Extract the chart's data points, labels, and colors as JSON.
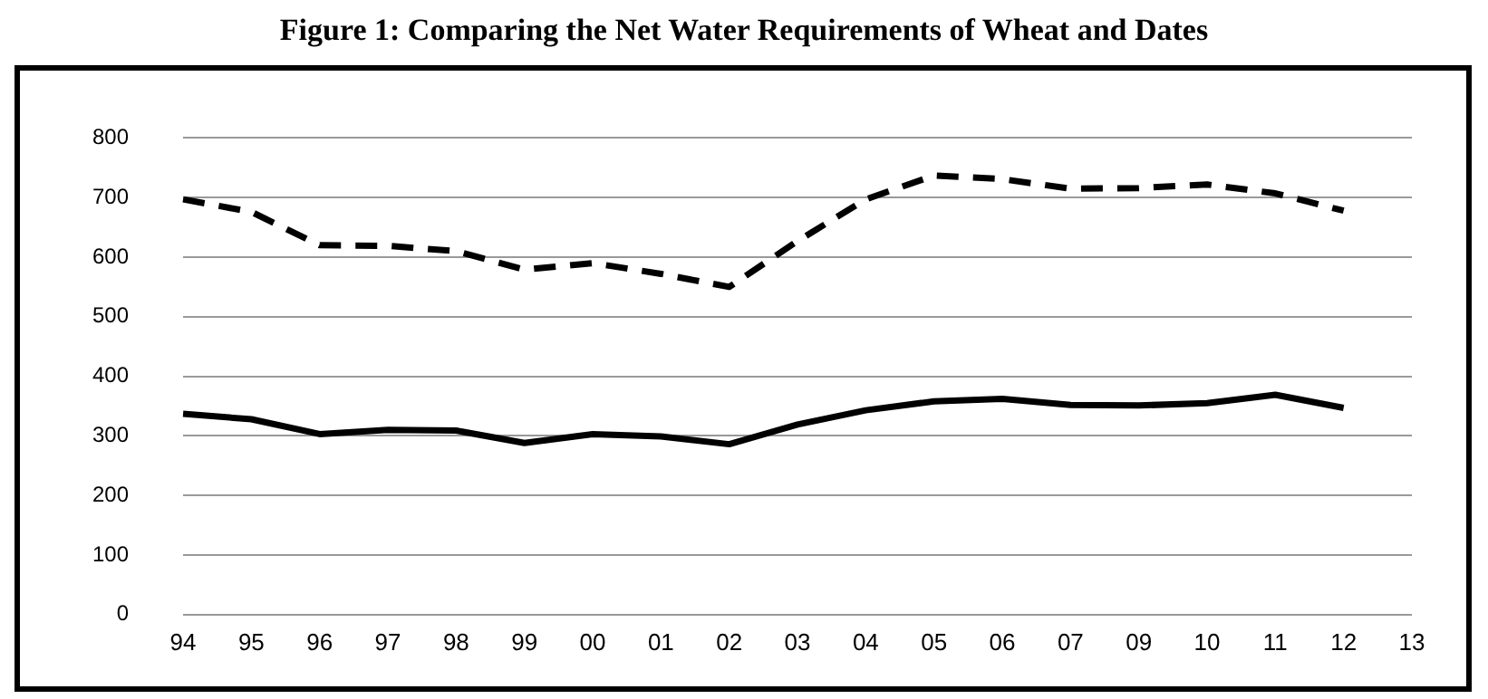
{
  "chart_data": {
    "type": "line",
    "title": "Figure 1: Comparing the Net Water Requirements of Wheat and Dates",
    "categories": [
      "94",
      "95",
      "96",
      "97",
      "98",
      "99",
      "00",
      "01",
      "02",
      "03",
      "04",
      "05",
      "06",
      "07",
      "09",
      "10",
      "11",
      "12",
      "13"
    ],
    "series": [
      {
        "color": "#000000",
        "line_style": "dashed",
        "values": [
          697,
          676,
          620,
          619,
          610,
          579,
          590,
          572,
          550,
          627,
          697,
          737,
          731,
          715,
          716,
          722,
          707,
          678,
          null
        ]
      },
      {
        "color": "#000000",
        "line_style": "solid",
        "values": [
          337,
          328,
          303,
          310,
          309,
          288,
          303,
          299,
          286,
          319,
          343,
          358,
          362,
          352,
          351,
          355,
          369,
          347,
          null
        ]
      }
    ],
    "ylim": [
      0,
      800
    ],
    "yticks": [
      0,
      100,
      200,
      300,
      400,
      500,
      600,
      700,
      800
    ],
    "grid": "y",
    "legend": false,
    "marker": "none"
  }
}
